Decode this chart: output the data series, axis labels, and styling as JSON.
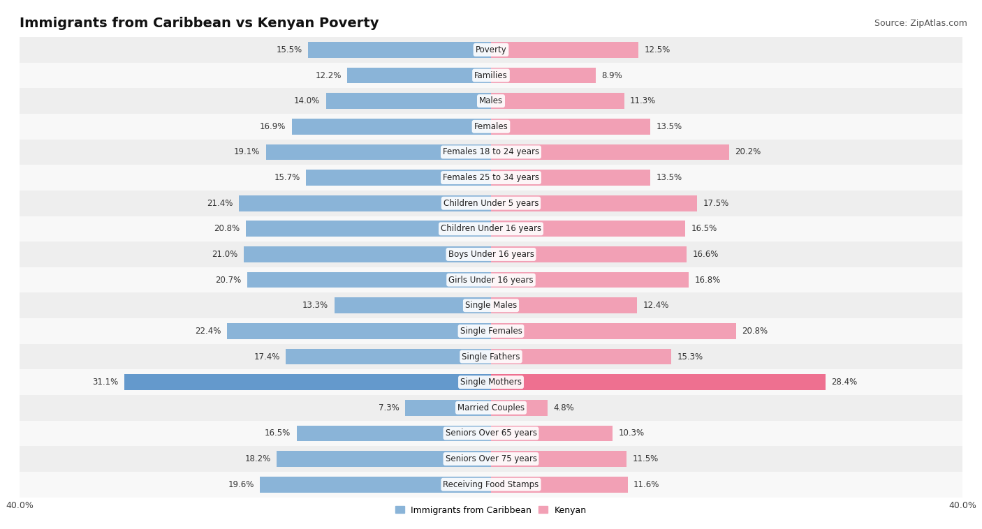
{
  "title": "Immigrants from Caribbean vs Kenyan Poverty",
  "source": "Source: ZipAtlas.com",
  "categories": [
    "Poverty",
    "Families",
    "Males",
    "Females",
    "Females 18 to 24 years",
    "Females 25 to 34 years",
    "Children Under 5 years",
    "Children Under 16 years",
    "Boys Under 16 years",
    "Girls Under 16 years",
    "Single Males",
    "Single Females",
    "Single Fathers",
    "Single Mothers",
    "Married Couples",
    "Seniors Over 65 years",
    "Seniors Over 75 years",
    "Receiving Food Stamps"
  ],
  "caribbean_values": [
    15.5,
    12.2,
    14.0,
    16.9,
    19.1,
    15.7,
    21.4,
    20.8,
    21.0,
    20.7,
    13.3,
    22.4,
    17.4,
    31.1,
    7.3,
    16.5,
    18.2,
    19.6
  ],
  "kenyan_values": [
    12.5,
    8.9,
    11.3,
    13.5,
    20.2,
    13.5,
    17.5,
    16.5,
    16.6,
    16.8,
    12.4,
    20.8,
    15.3,
    28.4,
    4.8,
    10.3,
    11.5,
    11.6
  ],
  "caribbean_color": "#8ab4d8",
  "kenyan_color": "#f2a0b5",
  "caribbean_highlight_color": "#6499cc",
  "kenyan_highlight_color": "#ee7090",
  "row_bg_odd": "#eeeeee",
  "row_bg_even": "#f8f8f8",
  "xlim": 40.0,
  "bar_height": 0.62,
  "value_fontsize": 8.5,
  "label_fontsize": 8.5,
  "title_fontsize": 14,
  "source_fontsize": 9,
  "legend_fontsize": 9
}
